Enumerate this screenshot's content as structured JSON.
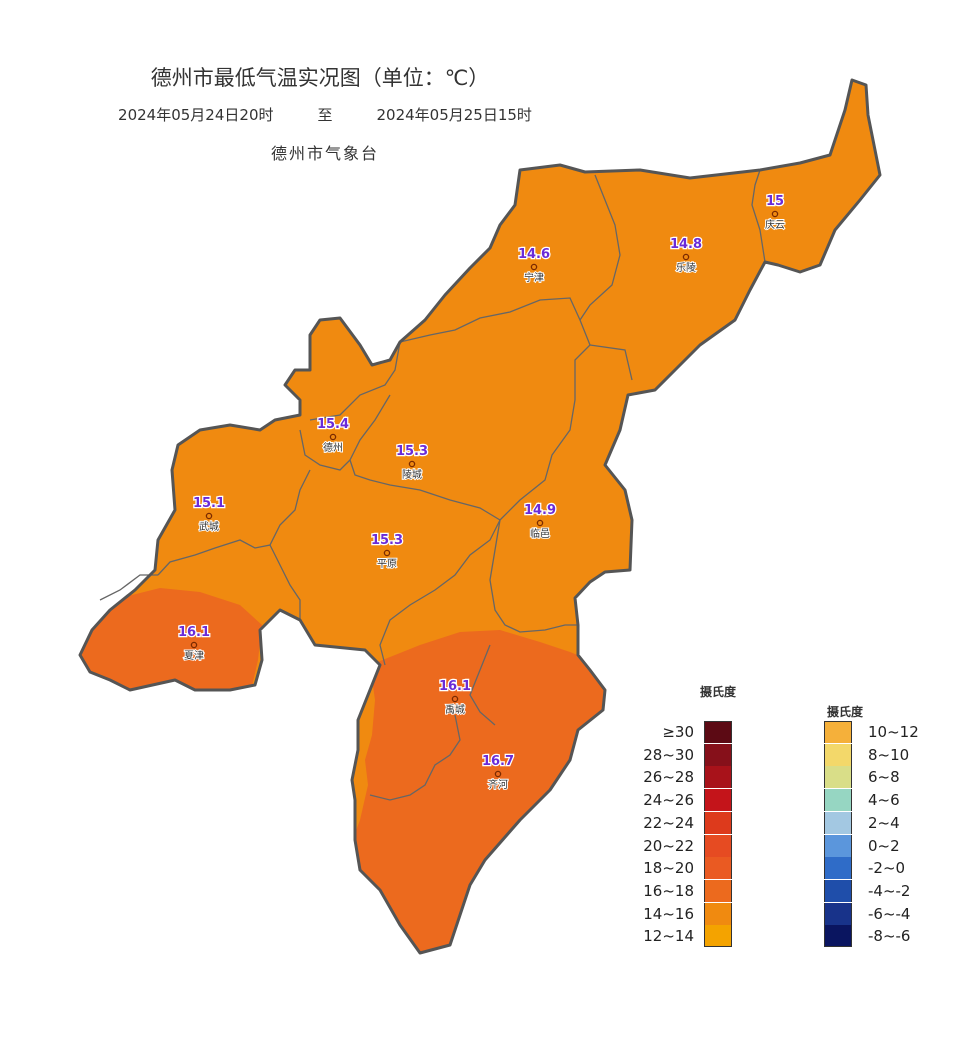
{
  "header": {
    "title": "德州市最低气温实况图（单位：℃）",
    "period_start": "2024年05月24日20时",
    "period_sep": "至",
    "period_end": "2024年05月25日15时",
    "agency": "德州市气象台"
  },
  "stations": [
    {
      "name": "庆云",
      "value": "15"
    },
    {
      "name": "乐陵",
      "value": "14.8"
    },
    {
      "name": "宁津",
      "value": "14.6"
    },
    {
      "name": "德州",
      "value": "15.4"
    },
    {
      "name": "陵城",
      "value": "15.3"
    },
    {
      "name": "武城",
      "value": "15.1"
    },
    {
      "name": "临邑",
      "value": "14.9"
    },
    {
      "name": "平原",
      "value": "15.3"
    },
    {
      "name": "夏津",
      "value": "16.1"
    },
    {
      "name": "禹城",
      "value": "16.1"
    },
    {
      "name": "齐河",
      "value": "16.7"
    }
  ],
  "legend_warm": {
    "title": "摄氏度",
    "items": [
      {
        "label": "≥30",
        "color": "#5c0a14"
      },
      {
        "label": "28~30",
        "color": "#86101a"
      },
      {
        "label": "26~28",
        "color": "#a8121a"
      },
      {
        "label": "24~26",
        "color": "#c4141a"
      },
      {
        "label": "22~24",
        "color": "#dd3a1c"
      },
      {
        "label": "20~22",
        "color": "#e64b22"
      },
      {
        "label": "18~20",
        "color": "#ea5a22"
      },
      {
        "label": "16~18",
        "color": "#ec6a1e"
      },
      {
        "label": "14~16",
        "color": "#f08a10"
      },
      {
        "label": "12~14",
        "color": "#f4a300"
      }
    ]
  },
  "legend_cool": {
    "title": "摄氏度",
    "items": [
      {
        "label": "10~12",
        "color": "#f5b03a"
      },
      {
        "label": "8~10",
        "color": "#f3d86a"
      },
      {
        "label": "6~8",
        "color": "#d9de88"
      },
      {
        "label": "4~6",
        "color": "#96d6c2"
      },
      {
        "label": "2~4",
        "color": "#a3c8e2"
      },
      {
        "label": "0~2",
        "color": "#5b96dc"
      },
      {
        "label": "-2~0",
        "color": "#2f6cc8"
      },
      {
        "label": "-4~-2",
        "color": "#1f4eaa"
      },
      {
        "label": "-6~-4",
        "color": "#18338a"
      },
      {
        "label": "-8~-6",
        "color": "#0a1560"
      }
    ]
  },
  "colors": {
    "fill_14_16": "#f08a10",
    "fill_16_18": "#ec6a1e",
    "station_value": "#6a2bd8",
    "border": "#555555"
  }
}
